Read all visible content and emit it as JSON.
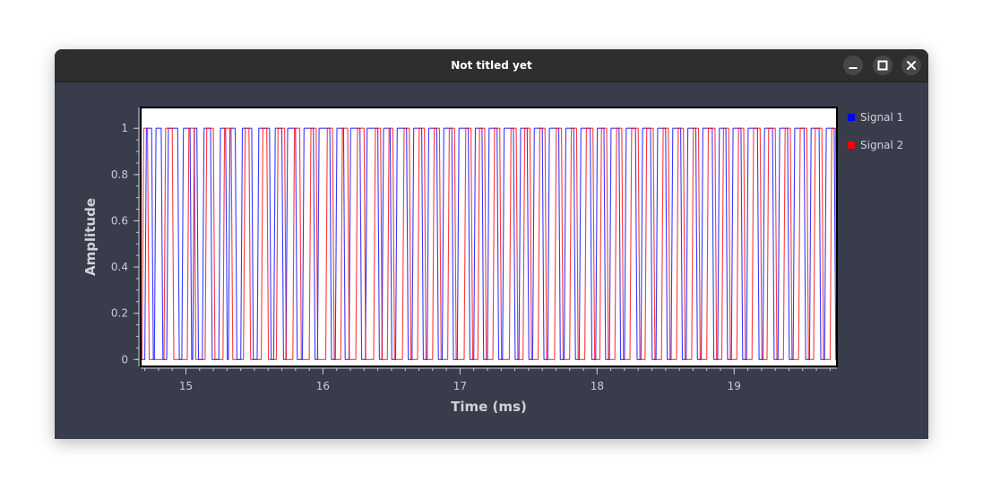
{
  "window": {
    "title": "Not titled yet",
    "controls": {
      "minimize": "minimize-icon",
      "maximize": "maximize-icon",
      "close": "close-icon"
    }
  },
  "colors": {
    "window_bg": "#393c4b",
    "titlebar_bg": "#2e2e2e",
    "plot_bg": "#ffffff",
    "signal1": "#0000ff",
    "signal2": "#ff0000"
  },
  "chart_data": {
    "type": "line",
    "title": "",
    "xlabel": "Time (ms)",
    "ylabel": "Amplitude",
    "xlim": [
      14.67,
      19.75
    ],
    "ylim": [
      -0.03,
      1.09
    ],
    "xticks": [
      15,
      16,
      17,
      18,
      19
    ],
    "yticks": [
      0,
      0.2,
      0.4,
      0.6,
      0.8,
      1
    ],
    "ytick_labels": [
      "0",
      "0.2",
      "0.4",
      "0.6",
      "0.8",
      "1"
    ],
    "grid": false,
    "legend": "right",
    "signal_type": "square_pulse",
    "series": [
      {
        "name": "Signal 1",
        "color": "#0000ff",
        "transitions": [
          14.7,
          14.75,
          14.77,
          14.82,
          14.86,
          14.94,
          14.97,
          15.03,
          15.05,
          15.08,
          15.12,
          15.18,
          15.24,
          15.29,
          15.31,
          15.36,
          15.4,
          15.48,
          15.52,
          15.61,
          15.64,
          15.7,
          15.73,
          15.8,
          15.85,
          15.93,
          15.96,
          16.05,
          16.09,
          16.15,
          16.19,
          16.27,
          16.31,
          16.4,
          16.43,
          16.49,
          16.53,
          16.61,
          16.65,
          16.72,
          16.76,
          16.83,
          16.87,
          16.94,
          16.98,
          17.06,
          17.1,
          17.16,
          17.2,
          17.27,
          17.31,
          17.39,
          17.43,
          17.49,
          17.53,
          17.6,
          17.64,
          17.72,
          17.76,
          17.83,
          17.87,
          17.95,
          17.99,
          18.05,
          18.09,
          18.16,
          18.2,
          18.28,
          18.32,
          18.39,
          18.43,
          18.5,
          18.54,
          18.61,
          18.65,
          18.72,
          18.76,
          18.84,
          18.88,
          18.94,
          18.98,
          19.05,
          19.09,
          19.17,
          19.21,
          19.28,
          19.32,
          19.39,
          19.43,
          19.51,
          19.55,
          19.62,
          19.66,
          19.73
        ]
      },
      {
        "name": "Signal 2",
        "color": "#ff0000",
        "transitions": [
          14.68,
          14.72,
          14.84,
          14.9,
          15.01,
          15.06,
          15.14,
          15.2,
          15.27,
          15.33,
          15.42,
          15.46,
          15.55,
          15.59,
          15.66,
          15.72,
          15.78,
          15.83,
          15.9,
          15.95,
          16.02,
          16.07,
          16.13,
          16.18,
          16.24,
          16.3,
          16.37,
          16.42,
          16.47,
          16.51,
          16.58,
          16.63,
          16.69,
          16.74,
          16.8,
          16.85,
          16.91,
          16.96,
          17.03,
          17.08,
          17.13,
          17.18,
          17.24,
          17.29,
          17.36,
          17.41,
          17.46,
          17.51,
          17.57,
          17.62,
          17.69,
          17.74,
          17.8,
          17.85,
          17.91,
          17.97,
          18.02,
          18.07,
          18.13,
          18.18,
          18.24,
          18.3,
          18.35,
          18.41,
          18.47,
          18.52,
          18.58,
          18.63,
          18.69,
          18.74,
          18.8,
          18.86,
          18.91,
          18.96,
          19.02,
          19.07,
          19.13,
          19.19,
          19.24,
          19.3,
          19.36,
          19.41,
          19.47,
          19.53,
          19.58,
          19.64,
          19.7,
          19.74
        ]
      }
    ]
  }
}
